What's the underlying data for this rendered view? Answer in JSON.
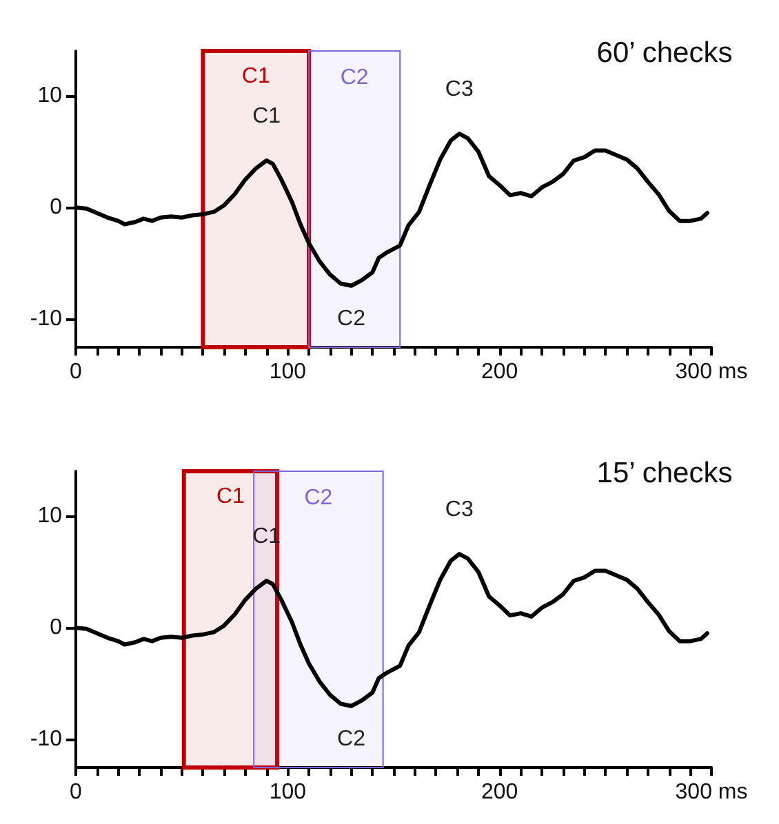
{
  "chart_data": [
    {
      "type": "line",
      "title": "60’ checks",
      "x": [
        0,
        5,
        10,
        15,
        20,
        23,
        28,
        32,
        36,
        40,
        45,
        50,
        55,
        60,
        65,
        70,
        75,
        80,
        85,
        90,
        93,
        97,
        102,
        106,
        110,
        115,
        120,
        125,
        130,
        135,
        140,
        143,
        147,
        153,
        157,
        162,
        167,
        172,
        177,
        181,
        185,
        190,
        195,
        200,
        205,
        210,
        215,
        220,
        225,
        230,
        235,
        240,
        245,
        250,
        255,
        260,
        265,
        270,
        275,
        280,
        285,
        290,
        295,
        298
      ],
      "series": [
        {
          "color": "#000000",
          "values": [
            0,
            -0.1,
            -0.5,
            -0.9,
            -1.2,
            -1.5,
            -1.3,
            -1.0,
            -1.2,
            -0.9,
            -0.8,
            -0.9,
            -0.7,
            -0.6,
            -0.4,
            0.2,
            1.2,
            2.5,
            3.5,
            4.2,
            3.9,
            2.5,
            0.5,
            -1.5,
            -3.2,
            -4.8,
            -6.0,
            -6.8,
            -7.0,
            -6.5,
            -5.8,
            -4.5,
            -4.0,
            -3.4,
            -1.6,
            -0.4,
            2.0,
            4.3,
            6.0,
            6.6,
            6.2,
            5.0,
            2.8,
            2.0,
            1.1,
            1.3,
            1.0,
            1.8,
            2.3,
            3.0,
            4.2,
            4.5,
            5.1,
            5.1,
            4.7,
            4.3,
            3.5,
            2.3,
            1.2,
            -0.3,
            -1.2,
            -1.2,
            -1.0,
            -0.5
          ]
        }
      ],
      "xlim": [
        0,
        300
      ],
      "xticks": [
        0,
        {
          "value": 10,
          "label": null
        },
        {
          "value": 20,
          "label": null
        },
        {
          "value": 30,
          "label": null
        },
        {
          "value": 40,
          "label": null
        },
        {
          "value": 50,
          "label": null
        },
        {
          "value": 60,
          "label": null
        },
        {
          "value": 70,
          "label": null
        },
        {
          "value": 80,
          "label": null
        },
        {
          "value": 90,
          "label": null
        },
        100,
        {
          "value": 110,
          "label": null
        },
        {
          "value": 120,
          "label": null
        },
        {
          "value": 130,
          "label": null
        },
        {
          "value": 140,
          "label": null
        },
        {
          "value": 150,
          "label": null
        },
        {
          "value": 160,
          "label": null
        },
        {
          "value": 170,
          "label": null
        },
        {
          "value": 180,
          "label": null
        },
        {
          "value": 190,
          "label": null
        },
        200,
        {
          "value": 210,
          "label": null
        },
        {
          "value": 220,
          "label": null
        },
        {
          "value": 230,
          "label": null
        },
        {
          "value": 240,
          "label": null
        },
        {
          "value": 250,
          "label": null
        },
        {
          "value": 260,
          "label": null
        },
        {
          "value": 270,
          "label": null
        },
        {
          "value": 280,
          "label": null
        },
        {
          "value": 290,
          "label": null
        },
        {
          "value": 300,
          "label": "300 ms"
        }
      ],
      "ylim": [
        -12.5,
        14
      ],
      "yticks": [
        -10,
        0,
        10
      ],
      "bands": [
        {
          "axis": "x",
          "from": 60,
          "to": 110,
          "label": "C1",
          "color": "#c00000"
        },
        {
          "axis": "x",
          "from": 110,
          "to": 153,
          "label": "C2",
          "color": "#8064d8"
        }
      ],
      "annotations": [
        {
          "text": "C1",
          "x": 90,
          "y": 4.2
        },
        {
          "text": "C2",
          "x": 130,
          "y": -7.0
        },
        {
          "text": "C3",
          "x": 181,
          "y": 6.6
        }
      ],
      "grid": false,
      "marker": "none"
    },
    {
      "type": "line",
      "title": "15’ checks",
      "x": [
        0,
        5,
        10,
        15,
        20,
        23,
        28,
        32,
        36,
        40,
        45,
        50,
        55,
        60,
        65,
        70,
        75,
        80,
        85,
        90,
        93,
        97,
        102,
        106,
        110,
        115,
        120,
        125,
        130,
        135,
        140,
        143,
        147,
        153,
        157,
        162,
        167,
        172,
        177,
        181,
        185,
        190,
        195,
        200,
        205,
        210,
        215,
        220,
        225,
        230,
        235,
        240,
        245,
        250,
        255,
        260,
        265,
        270,
        275,
        280,
        285,
        290,
        295,
        298
      ],
      "series": [
        {
          "color": "#000000",
          "values": [
            0,
            -0.1,
            -0.5,
            -0.9,
            -1.2,
            -1.5,
            -1.3,
            -1.0,
            -1.2,
            -0.9,
            -0.8,
            -0.9,
            -0.7,
            -0.6,
            -0.4,
            0.2,
            1.2,
            2.5,
            3.5,
            4.2,
            3.9,
            2.5,
            0.5,
            -1.5,
            -3.2,
            -4.8,
            -6.0,
            -6.8,
            -7.0,
            -6.5,
            -5.8,
            -4.5,
            -4.0,
            -3.4,
            -1.6,
            -0.4,
            2.0,
            4.3,
            6.0,
            6.6,
            6.2,
            5.0,
            2.8,
            2.0,
            1.1,
            1.3,
            1.0,
            1.8,
            2.3,
            3.0,
            4.2,
            4.5,
            5.1,
            5.1,
            4.7,
            4.3,
            3.5,
            2.3,
            1.2,
            -0.3,
            -1.2,
            -1.2,
            -1.0,
            -0.5
          ]
        }
      ],
      "xlim": [
        0,
        300
      ],
      "xticks": [
        0,
        {
          "value": 10,
          "label": null
        },
        {
          "value": 20,
          "label": null
        },
        {
          "value": 30,
          "label": null
        },
        {
          "value": 40,
          "label": null
        },
        {
          "value": 50,
          "label": null
        },
        {
          "value": 60,
          "label": null
        },
        {
          "value": 70,
          "label": null
        },
        {
          "value": 80,
          "label": null
        },
        {
          "value": 90,
          "label": null
        },
        100,
        {
          "value": 110,
          "label": null
        },
        {
          "value": 120,
          "label": null
        },
        {
          "value": 130,
          "label": null
        },
        {
          "value": 140,
          "label": null
        },
        {
          "value": 150,
          "label": null
        },
        {
          "value": 160,
          "label": null
        },
        {
          "value": 170,
          "label": null
        },
        {
          "value": 180,
          "label": null
        },
        {
          "value": 190,
          "label": null
        },
        200,
        {
          "value": 210,
          "label": null
        },
        {
          "value": 220,
          "label": null
        },
        {
          "value": 230,
          "label": null
        },
        {
          "value": 240,
          "label": null
        },
        {
          "value": 250,
          "label": null
        },
        {
          "value": 260,
          "label": null
        },
        {
          "value": 270,
          "label": null
        },
        {
          "value": 280,
          "label": null
        },
        {
          "value": 290,
          "label": null
        },
        {
          "value": 300,
          "label": "300 ms"
        }
      ],
      "ylim": [
        -12.5,
        14
      ],
      "yticks": [
        -10,
        0,
        10
      ],
      "bands": [
        {
          "axis": "x",
          "from": 51,
          "to": 95,
          "label": "C1",
          "color": "#c00000"
        },
        {
          "axis": "x",
          "from": 84,
          "to": 145,
          "label": "C2",
          "color": "#8064d8"
        }
      ],
      "annotations": [
        {
          "text": "C1",
          "x": 90,
          "y": 4.2
        },
        {
          "text": "C2",
          "x": 130,
          "y": -7.0
        },
        {
          "text": "C3",
          "x": 181,
          "y": 6.6
        }
      ],
      "grid": false,
      "marker": "none"
    }
  ]
}
